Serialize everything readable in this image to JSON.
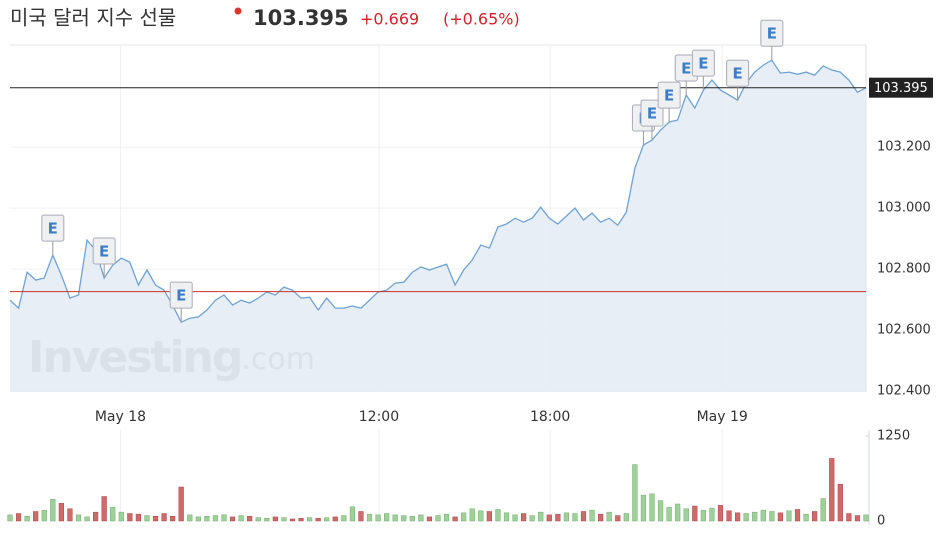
{
  "chart_data": {
    "type": "area",
    "title": "미국 달러 지수 선물",
    "price": "103.395",
    "change": "+0.669",
    "change_percent": "(+0.65%)",
    "watermark": {
      "brand": "Investing",
      "suffix": ".com"
    },
    "color": "#6fa3d4",
    "fill": "#e4ecf4",
    "grid": true,
    "values": [
      102.698,
      102.672,
      102.79,
      102.764,
      102.771,
      102.846,
      102.78,
      102.705,
      102.715,
      102.895,
      102.862,
      102.771,
      102.813,
      102.836,
      102.823,
      102.748,
      102.797,
      102.748,
      102.731,
      102.682,
      102.626,
      102.639,
      102.643,
      102.666,
      102.698,
      102.715,
      102.682,
      102.698,
      102.689,
      102.705,
      102.725,
      102.715,
      102.741,
      102.731,
      102.705,
      102.708,
      102.666,
      102.705,
      102.672,
      102.672,
      102.679,
      102.672,
      102.698,
      102.725,
      102.731,
      102.754,
      102.757,
      102.79,
      102.807,
      102.797,
      102.807,
      102.816,
      102.748,
      102.797,
      102.83,
      102.879,
      102.869,
      102.938,
      102.948,
      102.967,
      102.954,
      102.967,
      103.003,
      102.967,
      102.948,
      102.974,
      103.0,
      102.961,
      102.984,
      102.954,
      102.967,
      102.944,
      102.987,
      103.131,
      103.207,
      103.223,
      103.256,
      103.282,
      103.289,
      103.371,
      103.328,
      103.387,
      103.42,
      103.387,
      103.371,
      103.354,
      103.41,
      103.446,
      103.469,
      103.485,
      103.443,
      103.446,
      103.439,
      103.446,
      103.436,
      103.466,
      103.453,
      103.446,
      103.42,
      103.38,
      103.395
    ],
    "xlim": [
      0,
      100
    ],
    "xticks": [
      {
        "value": 12.9,
        "label": "May 18"
      },
      {
        "value": 43.1,
        "label": "12:00"
      },
      {
        "value": 63.1,
        "label": "18:00"
      },
      {
        "value": 83.2,
        "label": "May 19"
      }
    ],
    "ylim": [
      102.397,
      103.535
    ],
    "yticks": [
      {
        "value": 102.4,
        "label": "102.400"
      },
      {
        "value": 102.6,
        "label": "102.600"
      },
      {
        "value": 102.8,
        "label": "102.800"
      },
      {
        "value": 103.0,
        "label": "103.000"
      },
      {
        "value": 103.2,
        "label": "103.200"
      }
    ],
    "last_price": 103.395,
    "previous_close": 102.726,
    "events": [
      {
        "index": 5,
        "label": "E"
      },
      {
        "index": 11,
        "label": "E"
      },
      {
        "index": 20,
        "label": "E"
      },
      {
        "index": 74,
        "label": "E"
      },
      {
        "index": 75,
        "label": "E"
      },
      {
        "index": 77,
        "label": "E"
      },
      {
        "index": 79,
        "label": "E"
      },
      {
        "index": 81,
        "label": "E"
      },
      {
        "index": 85,
        "label": "E"
      },
      {
        "index": 89,
        "label": "E"
      }
    ],
    "volume": {
      "values": [
        90,
        110,
        70,
        140,
        160,
        320,
        260,
        180,
        90,
        60,
        130,
        360,
        200,
        130,
        110,
        100,
        80,
        70,
        110,
        70,
        500,
        90,
        60,
        70,
        80,
        90,
        60,
        80,
        70,
        50,
        40,
        60,
        50,
        30,
        40,
        50,
        40,
        50,
        60,
        80,
        210,
        140,
        100,
        90,
        110,
        90,
        80,
        70,
        90,
        60,
        80,
        100,
        60,
        120,
        180,
        150,
        140,
        170,
        120,
        90,
        110,
        80,
        130,
        90,
        100,
        120,
        110,
        140,
        160,
        100,
        130,
        80,
        110,
        830,
        380,
        400,
        300,
        200,
        250,
        180,
        220,
        160,
        190,
        230,
        150,
        120,
        110,
        130,
        160,
        140,
        120,
        150,
        170,
        100,
        140,
        330,
        920,
        540,
        110,
        80,
        90
      ],
      "up_color": "#9fd09a",
      "down_color": "#cd6b6b",
      "ylim": [
        0,
        1250
      ],
      "yticks": [
        0,
        1250
      ]
    }
  }
}
